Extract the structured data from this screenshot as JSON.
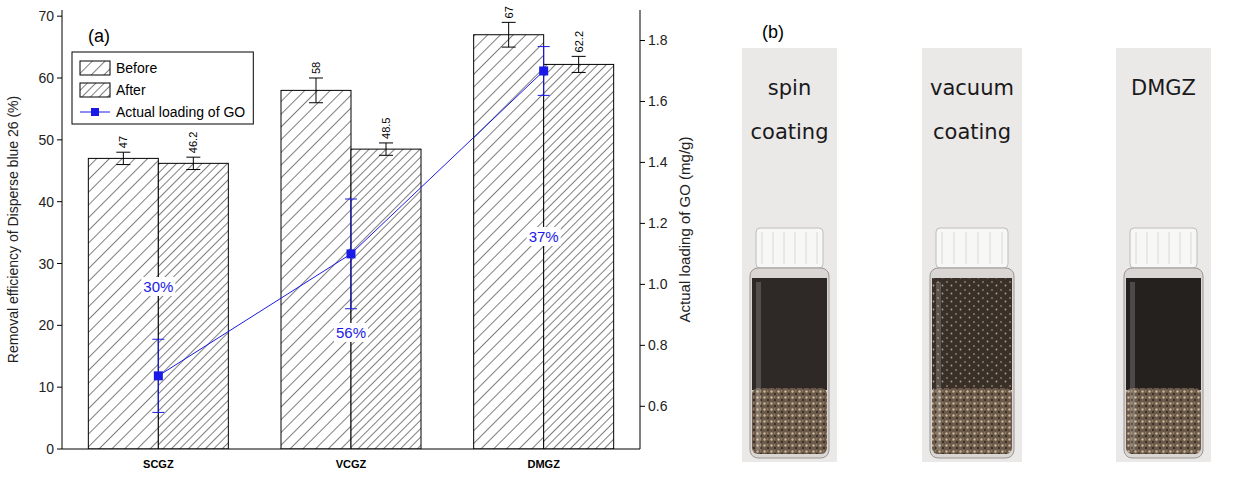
{
  "chart_data": {
    "type": "bar",
    "panel": "(a)",
    "categories": [
      "SCGZ",
      "VCGZ",
      "DMGZ"
    ],
    "y_label": "Removal efficiency of Disperse blue 26 (%)",
    "y2_label": "Actual loading of GO (mg/g)",
    "ylim": [
      0,
      71
    ],
    "yticks": [
      0,
      10,
      20,
      30,
      40,
      50,
      60,
      70
    ],
    "y2lim": [
      0.46,
      1.9
    ],
    "y2ticks": [
      0.6,
      0.8,
      {
        "value": 1,
        "label": "1.0"
      },
      1.2,
      1.4,
      1.6,
      1.8
    ],
    "data_labels": true,
    "legend": "upper left",
    "series": [
      {
        "name": "Before",
        "color": "#000000",
        "values": [
          47,
          58,
          67
        ],
        "errors": [
          1,
          2,
          2
        ]
      },
      {
        "name": "After",
        "color": "#000000",
        "values": [
          46.2,
          48.5,
          62.2
        ],
        "errors": [
          1,
          1,
          1.3
        ]
      },
      {
        "name": "Actual loading of GO",
        "type": "line",
        "axis": "y2",
        "color": "#1a1ae6",
        "marker": "square",
        "values": [
          0.7,
          1.1,
          1.7
        ],
        "errors": [
          0.12,
          0.18,
          0.08
        ]
      }
    ],
    "annotations": [
      "30%",
      "56%",
      "37%"
    ]
  },
  "photo": {
    "panel": "(b)",
    "labels": [
      "spin coating",
      "vacuum coating",
      "DMGZ"
    ]
  }
}
